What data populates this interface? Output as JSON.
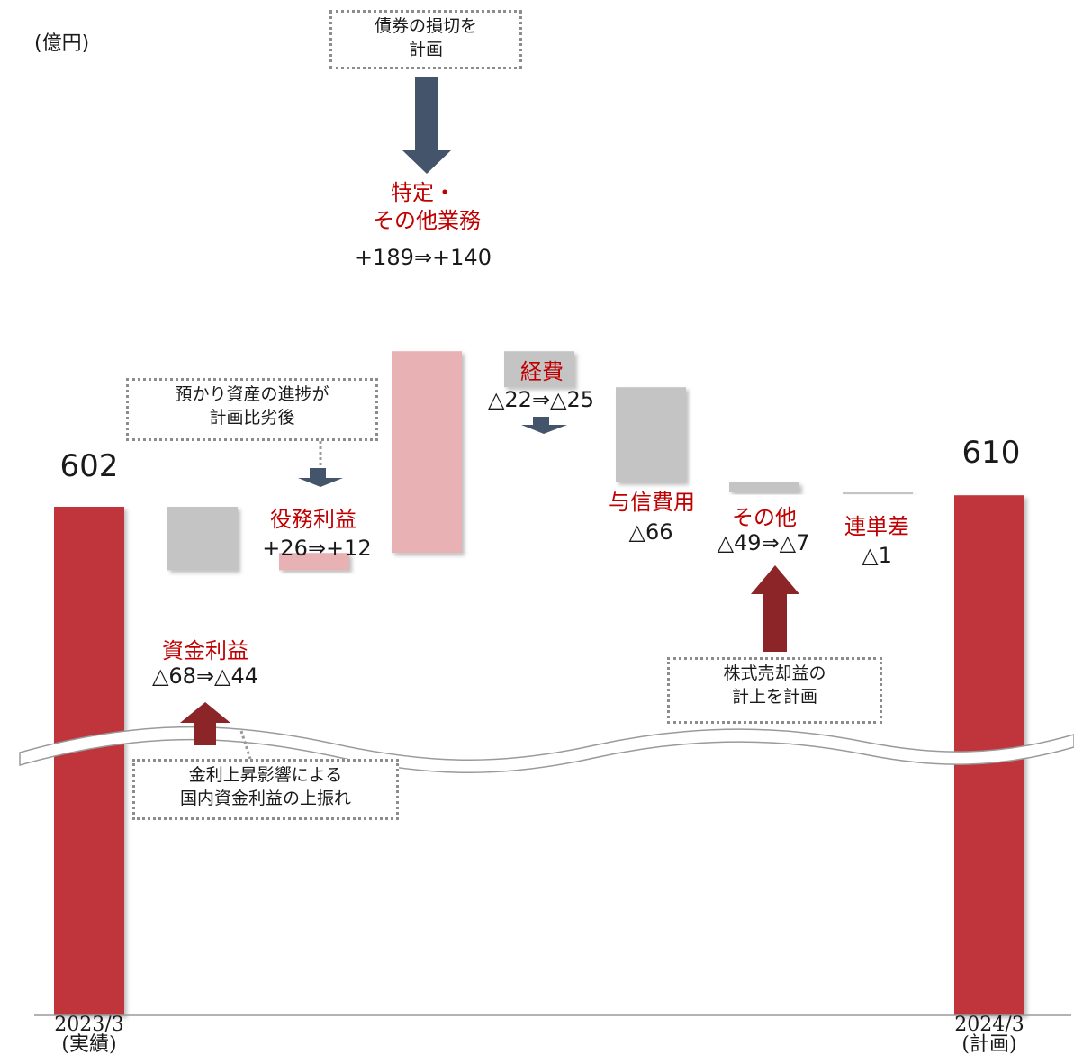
{
  "unit": "(億円)",
  "chart_data": {
    "type": "waterfall",
    "start": {
      "category": "2023/3",
      "sub": "(実績)",
      "value": 602
    },
    "end": {
      "category": "2024/3",
      "sub": "(計画)",
      "value": 610
    },
    "steps": [
      {
        "name": "資金利益",
        "label": "△68⇒△44",
        "previous": -68,
        "plan": -44
      },
      {
        "name": "役務利益",
        "label": "+26⇒+12",
        "previous": 26,
        "plan": 12
      },
      {
        "name": "特定・\nその他業務",
        "name_line1": "特定・",
        "name_line2": "その他業務",
        "label": "+189⇒+140",
        "previous": 189,
        "plan": 140
      },
      {
        "name": "経費",
        "label": "△22⇒△25",
        "previous": -22,
        "plan": -25
      },
      {
        "name": "与信費用",
        "label": "△66",
        "plan": -66
      },
      {
        "name": "その他",
        "label": "△49⇒△7",
        "previous": -49,
        "plan": -7
      },
      {
        "name": "連単差",
        "label": "△1",
        "plan": -1
      }
    ],
    "colors": {
      "total": "#c0353a",
      "increase": "#e8b1b3",
      "decrease": "#c4c4c4",
      "arrow_dark": "#44546a",
      "arrow_red": "#8b2528"
    }
  },
  "notes": {
    "bond": {
      "line1": "債券の損切を",
      "line2": "計画"
    },
    "deposit": {
      "line1": "預かり資産の進捗が",
      "line2": "計画比劣後"
    },
    "rate": {
      "line1": "金利上昇影響による",
      "line2": "国内資金利益の上振れ"
    },
    "stock": {
      "line1": "株式売却益の",
      "line2": "計上を計画"
    }
  }
}
